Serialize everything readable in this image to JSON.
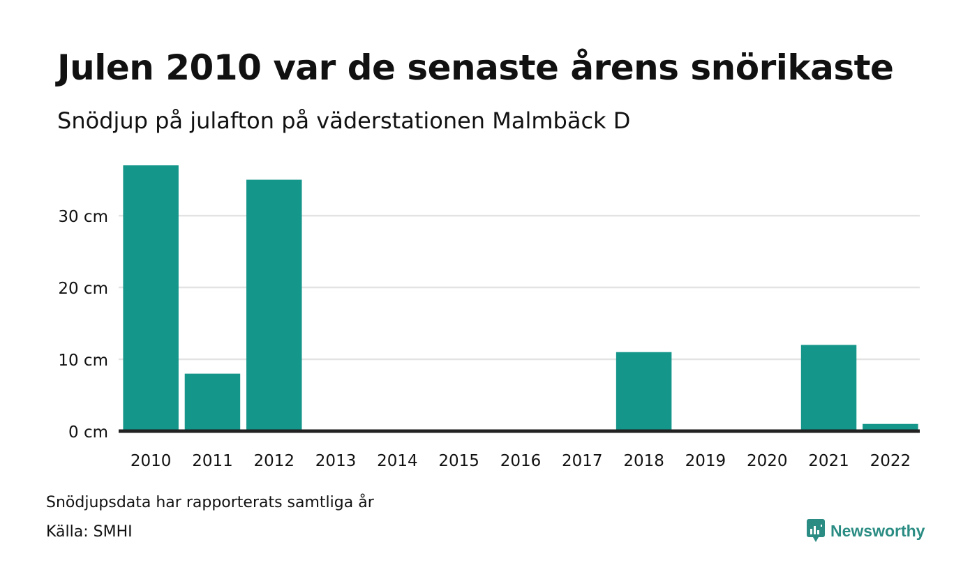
{
  "title": "Julen 2010 var de senaste årens snörikaste",
  "subtitle": "Snödjup på julafton på väderstationen Malmbäck D",
  "footnote": "Snödjupsdata har rapporterats samtliga år",
  "source": "Källa: SMHI",
  "brand": {
    "name": "Newsworthy",
    "icon": "newsworthy-logo-icon",
    "color": "#2a8c83"
  },
  "chart_data": {
    "type": "bar",
    "title": "Julen 2010 var de senaste årens snörikaste",
    "subtitle": "Snödjup på julafton på väderstationen Malmbäck D",
    "xlabel": "",
    "ylabel": "",
    "unit": "cm",
    "categories": [
      "2010",
      "2011",
      "2012",
      "2013",
      "2014",
      "2015",
      "2016",
      "2017",
      "2018",
      "2019",
      "2020",
      "2021",
      "2022"
    ],
    "values": [
      37,
      8,
      35,
      0,
      0,
      0,
      0,
      0,
      11,
      0,
      0,
      12,
      1
    ],
    "yticks": [
      "0 cm",
      "10 cm",
      "20 cm",
      "30 cm"
    ],
    "ytick_values": [
      0,
      10,
      20,
      30
    ],
    "ylim": [
      0,
      37
    ],
    "grid": true,
    "legend": "none",
    "bar_color": "#14968a",
    "axis_color": "#222222",
    "grid_color": "#e3e3e3"
  }
}
